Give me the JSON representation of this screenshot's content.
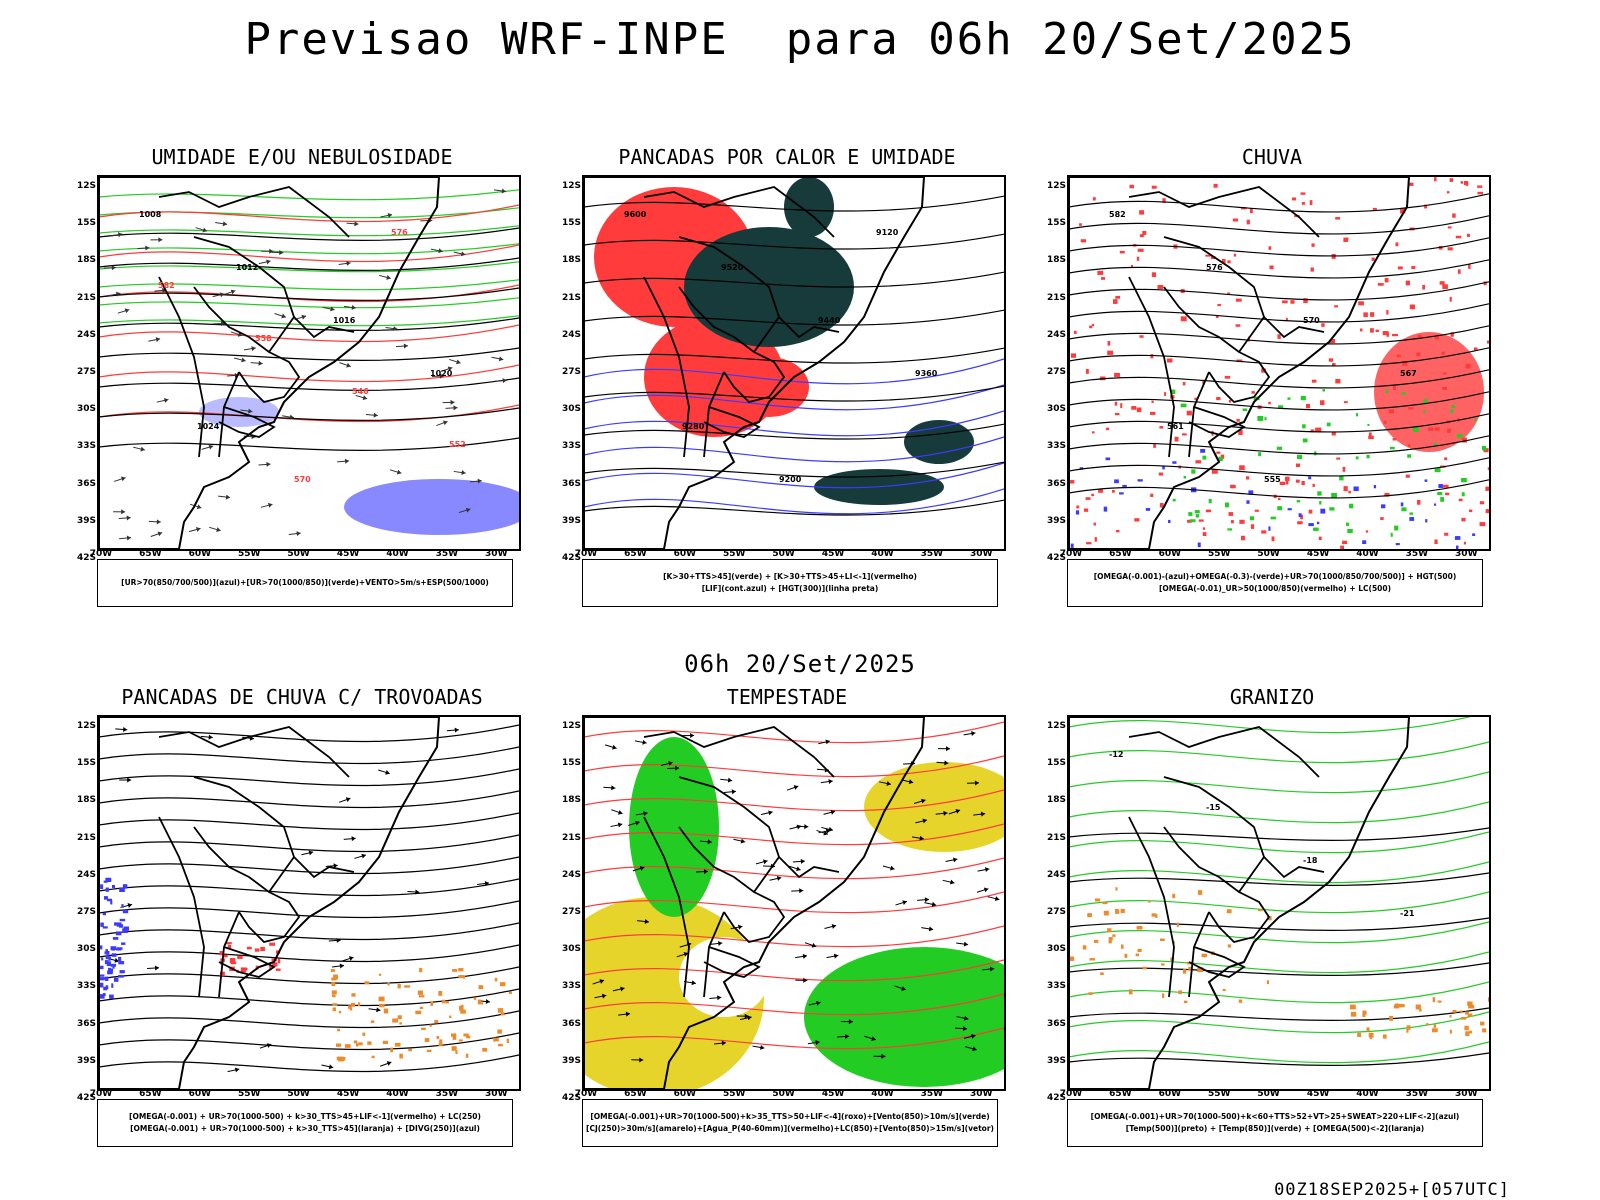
{
  "main_title": "Previsao WRF-INPE  para 06h 20/Set/2025",
  "mid_title": "06h 20/Set/2025",
  "footer": "00Z18SEP2025+[057UTC]",
  "lat_labels": [
    "12S",
    "15S",
    "18S",
    "21S",
    "24S",
    "27S",
    "30S",
    "33S",
    "36S",
    "39S",
    "42S"
  ],
  "lon_labels": [
    "70W",
    "65W",
    "60W",
    "55W",
    "50W",
    "45W",
    "40W",
    "35W",
    "30W"
  ],
  "colors": {
    "blue": "#3b3bff",
    "green": "#22cc22",
    "red": "#ff3b3b",
    "dark": "#173a3a",
    "orange": "#ee8a2a",
    "yellow": "#e6d42a"
  },
  "panels": [
    {
      "title": "UMIDADE E/OU NEBULOSIDADE",
      "legend": [
        "[UR>70(850/700/500)](azul)+[UR>70(1000/850)](verde)+VENTO>5m/s+ESP(500/1000)"
      ],
      "contour_labels": [
        "1008",
        "1012",
        "1016",
        "1020",
        "1024",
        "570",
        "576",
        "582",
        "558",
        "546",
        "552"
      ]
    },
    {
      "title": "PANCADAS POR CALOR E UMIDADE",
      "legend": [
        "[K>30+TTS>45](verde) + [K>30+TTS>45+LI<-1](vermelho)",
        "[LIF](cont.azul) + [HGT(300)](linha preta)"
      ],
      "contour_labels": [
        "9600",
        "9520",
        "9440",
        "9360",
        "9280",
        "9200",
        "9120"
      ]
    },
    {
      "title": "CHUVA",
      "legend": [
        "[OMEGA(-0.001)-(azul)+OMEGA(-0.3)-(verde)+UR>70(1000/850/700/500)] + HGT(500)",
        "[OMEGA(-0.01)_UR>50(1000/850)(vermelho) + LC(500)"
      ],
      "contour_labels": [
        "582",
        "576",
        "570",
        "567",
        "561",
        "555"
      ]
    },
    {
      "title": "PANCADAS DE CHUVA C/ TROVOADAS",
      "legend": [
        "[OMEGA(-0.001) + UR>70(1000-500) + k>30_TTS>45+LIF<-1](vermelho) + LC(250)",
        "[OMEGA(-0.001) + UR>70(1000-500) + k>30_TTS>45](laranja) + [DIVG(250)](azul)"
      ],
      "contour_labels": []
    },
    {
      "title": "TEMPESTADE",
      "legend": [
        "[OMEGA(-0.001)+UR>70(1000-500)+k>35_TTS>50+LIF<-4](roxo)+[Vento(850)>10m/s](verde)",
        "[CJ(250)>30m/s](amarelo)+[Agua_P(40-60mm)](vermelho)+LC(850)+[Vento(850)>15m/s](vetor)"
      ],
      "contour_labels": []
    },
    {
      "title": "GRANIZO",
      "legend": [
        "[OMEGA(-0.001)+UR>70(1000-500)+k<60+TTS>52+VT>25+SWEAT>220+LIF<-2](azul)",
        "[Temp(500)](preto) + [Temp(850)](verde) + [OMEGA(500)<-2](laranja)"
      ],
      "contour_labels": [
        "-12",
        "-15",
        "-18",
        "-21"
      ]
    }
  ]
}
